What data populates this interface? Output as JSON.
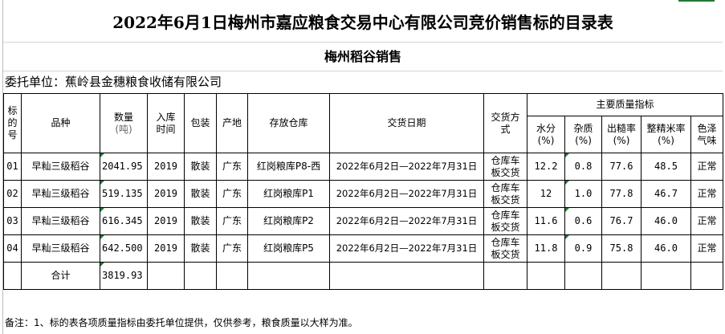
{
  "title": "2022年6月1日梅州市嘉应粮食交易中心有限公司竞价销售标的目录表",
  "subtitle": "梅州稻谷销售",
  "client": "委托单位：蕉岭县金穗粮食收储有限公司",
  "headers": {
    "lot": "标的号",
    "variety": "品种",
    "qty": "数量",
    "qty_unit": "(吨)",
    "year": "入库时间",
    "pack": "包装",
    "origin": "产地",
    "store": "存放仓库",
    "date": "交货日期",
    "method": "交货方式",
    "quality": "主要质量指标",
    "moist": "水分",
    "moist_u": "(%)",
    "imp": "杂质",
    "imp_u": "(%)",
    "yield": "出糙率",
    "yield_u": "(%)",
    "head": "整精米率",
    "head_u": "(%)",
    "color": "色泽气味"
  },
  "rows": [
    {
      "lot": "01",
      "variety": "早籼三级稻谷",
      "qty": "2041.95",
      "year": "2019",
      "pack": "散装",
      "origin": "广东",
      "store": "红岗粮库P8-西",
      "date": "2022年6月2日—2022年7月31日",
      "method": "仓库车板交货",
      "moist": "12.2",
      "imp": "0.8",
      "yield": "77.6",
      "head": "48.5",
      "color": "正常"
    },
    {
      "lot": "02",
      "variety": "早籼三级稻谷",
      "qty": "519.135",
      "year": "2019",
      "pack": "散装",
      "origin": "广东",
      "store": "红岗粮库P1",
      "date": "2022年6月2日—2022年7月31日",
      "method": "仓库车板交货",
      "moist": "12",
      "imp": "1.0",
      "yield": "77.8",
      "head": "46.7",
      "color": "正常"
    },
    {
      "lot": "03",
      "variety": "早籼三级稻谷",
      "qty": "616.345",
      "year": "2019",
      "pack": "散装",
      "origin": "广东",
      "store": "红岗粮库P2",
      "date": "2022年6月2日—2022年7月31日",
      "method": "仓库车板交货",
      "moist": "11.6",
      "imp": "0.6",
      "yield": "76.7",
      "head": "46.0",
      "color": "正常"
    },
    {
      "lot": "04",
      "variety": "早籼三级稻谷",
      "qty": "642.500",
      "year": "2019",
      "pack": "散装",
      "origin": "广东",
      "store": "红岗粮库P5",
      "date": "2022年6月2日—2022年7月31日",
      "method": "仓库车板交货",
      "moist": "11.8",
      "imp": "0.9",
      "yield": "75.8",
      "head": "46.0",
      "color": "正常"
    }
  ],
  "total": {
    "label": "合计",
    "qty": "3819.93"
  },
  "note": "备注：1、标的表各项质量指标由委托单位提供，仅供参考，粮食质量以大样为准。"
}
